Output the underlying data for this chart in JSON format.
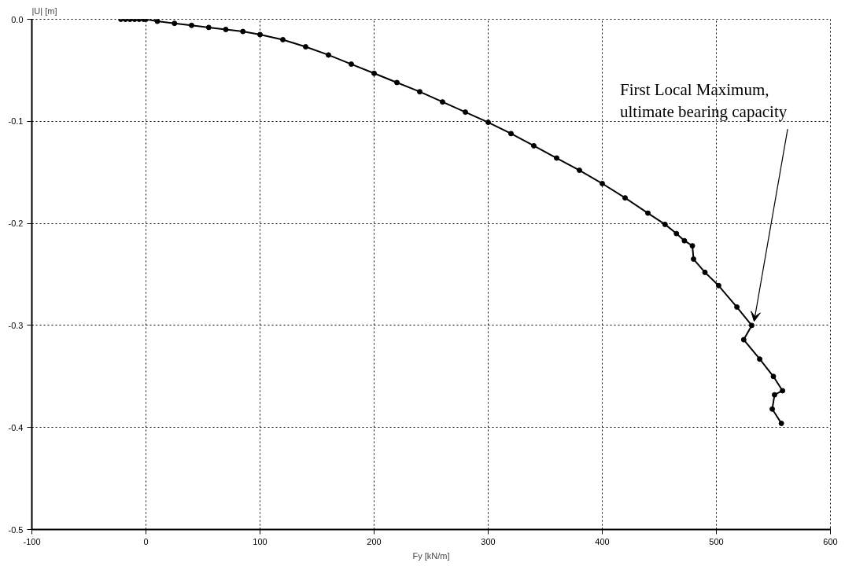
{
  "chart_data": {
    "type": "line",
    "xlabel": "Fy [kN/m]",
    "ylabel": "|U| [m]",
    "x": [
      -22,
      -18,
      -14,
      -10,
      -6,
      -2,
      0,
      10,
      25,
      40,
      55,
      70,
      85,
      100,
      120,
      140,
      160,
      180,
      200,
      220,
      240,
      260,
      280,
      300,
      320,
      340,
      360,
      380,
      400,
      420,
      440,
      455,
      465,
      472,
      479,
      480,
      490,
      502,
      518,
      531,
      524,
      538,
      550,
      558,
      551,
      549,
      557
    ],
    "series": [
      {
        "color": "#000000",
        "values": [
          0,
          0,
          0,
          0,
          0,
          0,
          0,
          -0.002,
          -0.004,
          -0.006,
          -0.008,
          -0.01,
          -0.012,
          -0.015,
          -0.02,
          -0.027,
          -0.035,
          -0.044,
          -0.053,
          -0.062,
          -0.071,
          -0.081,
          -0.091,
          -0.101,
          -0.112,
          -0.124,
          -0.136,
          -0.148,
          -0.161,
          -0.175,
          -0.19,
          -0.201,
          -0.21,
          -0.217,
          -0.222,
          -0.235,
          -0.248,
          -0.261,
          -0.282,
          -0.3,
          -0.314,
          -0.333,
          -0.35,
          -0.364,
          -0.368,
          -0.382,
          -0.396
        ]
      }
    ],
    "xlim": [
      -100,
      600
    ],
    "ylim": [
      -0.5,
      0.0
    ],
    "xticks": [
      -100,
      0,
      100,
      200,
      300,
      400,
      500,
      600
    ],
    "yticks": [
      {
        "value": 0,
        "label": "0.0"
      },
      -0.1,
      -0.2,
      -0.3,
      -0.4,
      -0.5
    ],
    "grid": true,
    "marker": "circle",
    "line_style": "solid",
    "annotations": [
      {
        "text": "First Local Maximum,\nultimate bearing capacity",
        "x": 531,
        "y": -0.3
      }
    ]
  }
}
